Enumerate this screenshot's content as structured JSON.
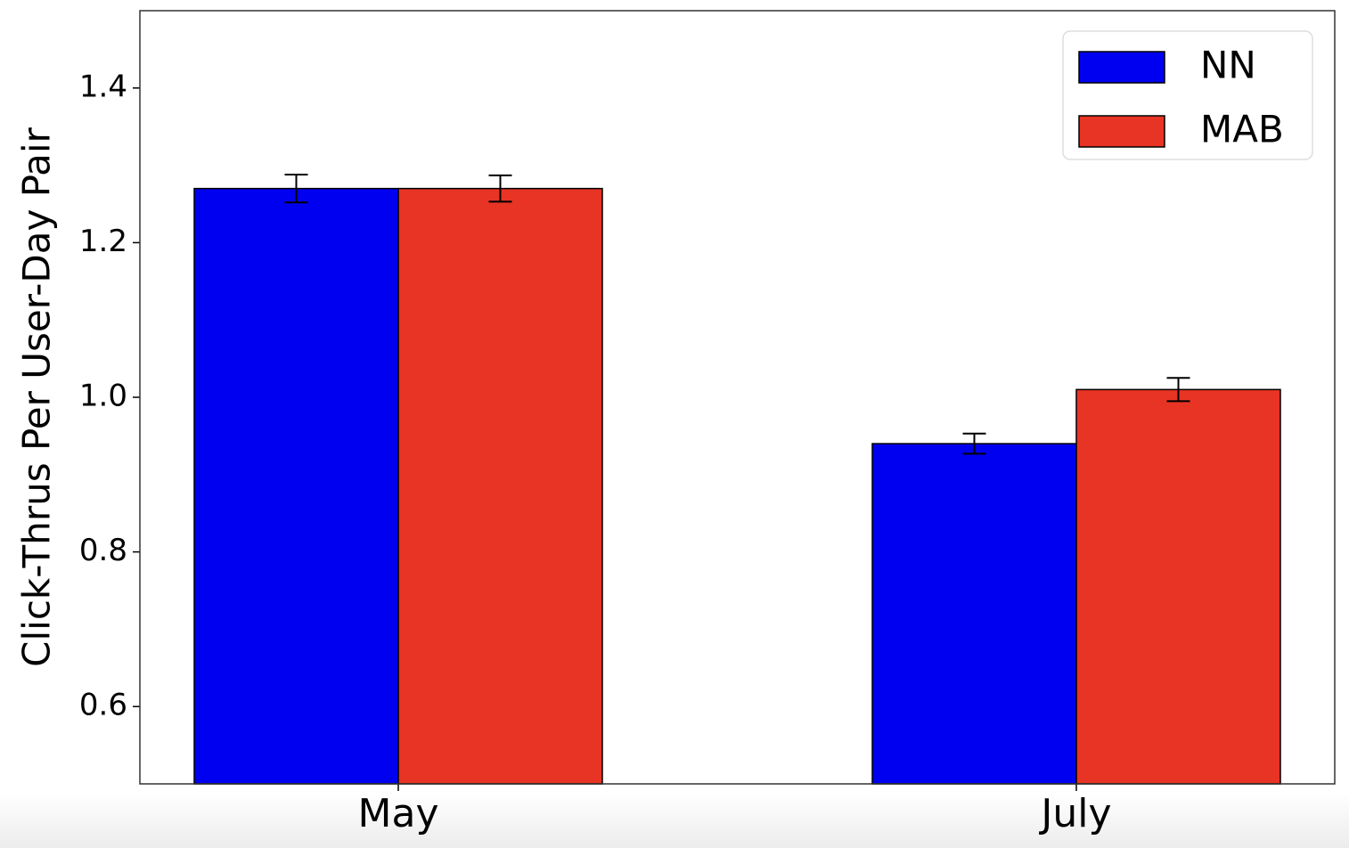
{
  "chart_data": {
    "type": "bar",
    "ylabel": "Click-Thrus Per User-Day Pair",
    "categories": [
      "May",
      "July"
    ],
    "series": [
      {
        "name": "NN",
        "color": "#0000f0",
        "values": [
          1.27,
          0.94
        ],
        "errors": [
          0.018,
          0.013
        ]
      },
      {
        "name": "MAB",
        "color": "#e83424",
        "values": [
          1.27,
          1.01
        ],
        "errors": [
          0.017,
          0.015
        ]
      }
    ],
    "ylim": [
      0.5,
      1.5
    ],
    "yticks": [
      0.6,
      0.8,
      {
        "value": 1.0,
        "label": "1.0"
      },
      1.2,
      1.4
    ],
    "legend": "upper right"
  }
}
